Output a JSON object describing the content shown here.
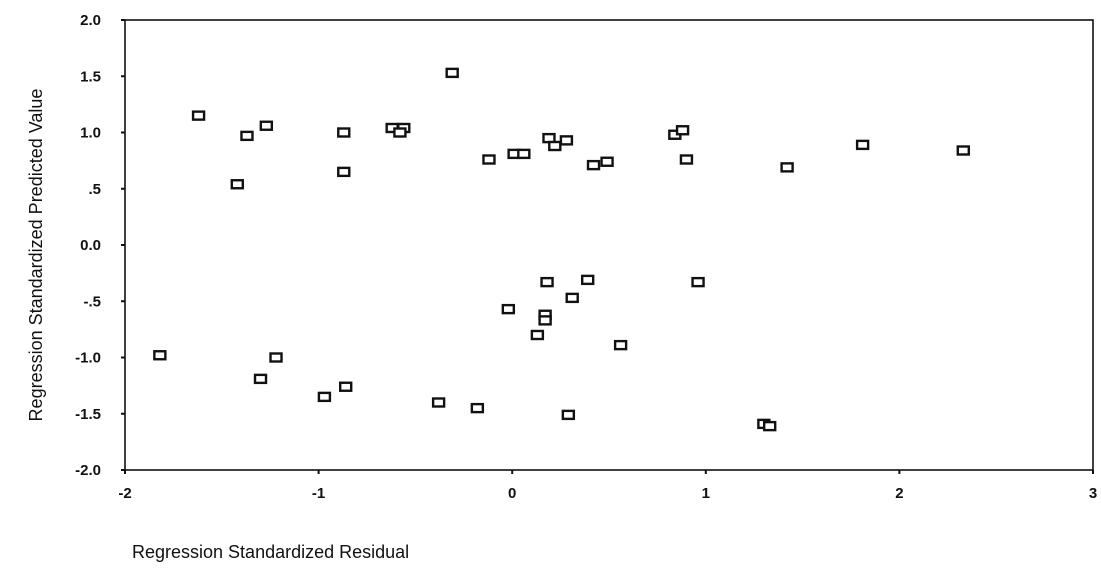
{
  "chart_data": {
    "type": "scatter",
    "title": "",
    "xlabel": "Regression Standardized Residual",
    "ylabel": "Regression Standardized Predicted Value",
    "xlim": [
      -2,
      3
    ],
    "ylim": [
      -2,
      2
    ],
    "x_ticks": [
      "-2",
      "-1",
      "0",
      "1",
      "2",
      "3"
    ],
    "y_ticks": [
      "2.0",
      "1.5",
      "1.0",
      ".5",
      "0.0",
      "-.5",
      "-1.0",
      "-1.5",
      "-2.0"
    ],
    "grid": false,
    "series": [
      {
        "points": [
          {
            "x": -1.62,
            "y": 1.15
          },
          {
            "x": -1.37,
            "y": 0.97
          },
          {
            "x": -1.27,
            "y": 1.06
          },
          {
            "x": -1.42,
            "y": 0.54
          },
          {
            "x": -0.87,
            "y": 1.0
          },
          {
            "x": -0.87,
            "y": 0.65
          },
          {
            "x": -0.62,
            "y": 1.04
          },
          {
            "x": -0.56,
            "y": 1.04
          },
          {
            "x": -0.58,
            "y": 1.0
          },
          {
            "x": -0.31,
            "y": 1.53
          },
          {
            "x": -0.12,
            "y": 0.76
          },
          {
            "x": 0.01,
            "y": 0.81
          },
          {
            "x": 0.06,
            "y": 0.81
          },
          {
            "x": 0.19,
            "y": 0.95
          },
          {
            "x": 0.22,
            "y": 0.88
          },
          {
            "x": 0.28,
            "y": 0.93
          },
          {
            "x": 0.42,
            "y": 0.71
          },
          {
            "x": 0.49,
            "y": 0.74
          },
          {
            "x": 0.84,
            "y": 0.98
          },
          {
            "x": 0.88,
            "y": 1.02
          },
          {
            "x": 0.9,
            "y": 0.76
          },
          {
            "x": 1.42,
            "y": 0.69
          },
          {
            "x": 1.81,
            "y": 0.89
          },
          {
            "x": 2.33,
            "y": 0.84
          },
          {
            "x": -0.02,
            "y": -0.57
          },
          {
            "x": 0.18,
            "y": -0.33
          },
          {
            "x": 0.17,
            "y": -0.62
          },
          {
            "x": 0.17,
            "y": -0.67
          },
          {
            "x": 0.13,
            "y": -0.8
          },
          {
            "x": 0.31,
            "y": -0.47
          },
          {
            "x": 0.39,
            "y": -0.31
          },
          {
            "x": 0.56,
            "y": -0.89
          },
          {
            "x": 0.96,
            "y": -0.33
          },
          {
            "x": -1.82,
            "y": -0.98
          },
          {
            "x": -1.3,
            "y": -1.19
          },
          {
            "x": -1.22,
            "y": -1.0
          },
          {
            "x": -0.86,
            "y": -1.26
          },
          {
            "x": -0.97,
            "y": -1.35
          },
          {
            "x": -0.38,
            "y": -1.4
          },
          {
            "x": -0.18,
            "y": -1.45
          },
          {
            "x": 0.29,
            "y": -1.51
          },
          {
            "x": 1.3,
            "y": -1.59
          },
          {
            "x": 1.33,
            "y": -1.61
          }
        ]
      }
    ]
  }
}
